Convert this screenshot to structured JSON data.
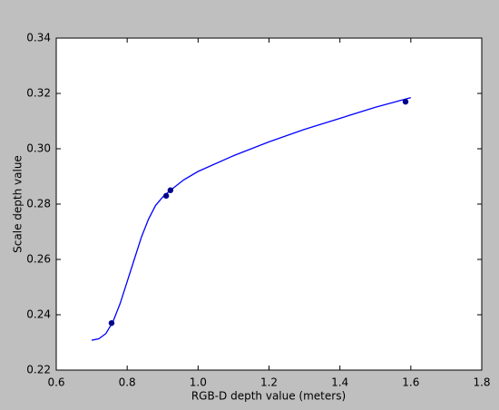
{
  "chart_data": {
    "type": "line",
    "xlabel": "RGB-D depth value (meters)",
    "ylabel": "Scale depth value",
    "xlim": [
      0.6,
      1.8
    ],
    "xticks": [
      0.6,
      0.8,
      {
        "value": 1,
        "label": "1.0"
      },
      1.2,
      1.4,
      1.6,
      1.8
    ],
    "ylim": [
      0.22,
      0.34
    ],
    "yticks": [
      0.22,
      0.24,
      0.26,
      0.28,
      {
        "value": 0.3,
        "label": "0.30"
      },
      0.32,
      0.34
    ],
    "series": [
      {
        "style": "line",
        "color": "#0000ff",
        "x": [
          0.7,
          0.72,
          0.74,
          0.76,
          0.78,
          0.8,
          0.82,
          0.84,
          0.86,
          0.88,
          0.9,
          0.92,
          0.96,
          1.0,
          1.1,
          1.2,
          1.3,
          1.4,
          1.5,
          1.6
        ],
        "values": [
          0.2308,
          0.2313,
          0.2332,
          0.2375,
          0.244,
          0.252,
          0.26,
          0.268,
          0.2745,
          0.2795,
          0.2825,
          0.2848,
          0.2888,
          0.2918,
          0.2975,
          0.3025,
          0.307,
          0.311,
          0.315,
          0.3185
        ]
      },
      {
        "style": "points",
        "color": "#00008b",
        "x": [
          0.756,
          0.91,
          0.922,
          1.585
        ],
        "values": [
          0.237,
          0.283,
          0.285,
          0.317
        ]
      }
    ]
  }
}
